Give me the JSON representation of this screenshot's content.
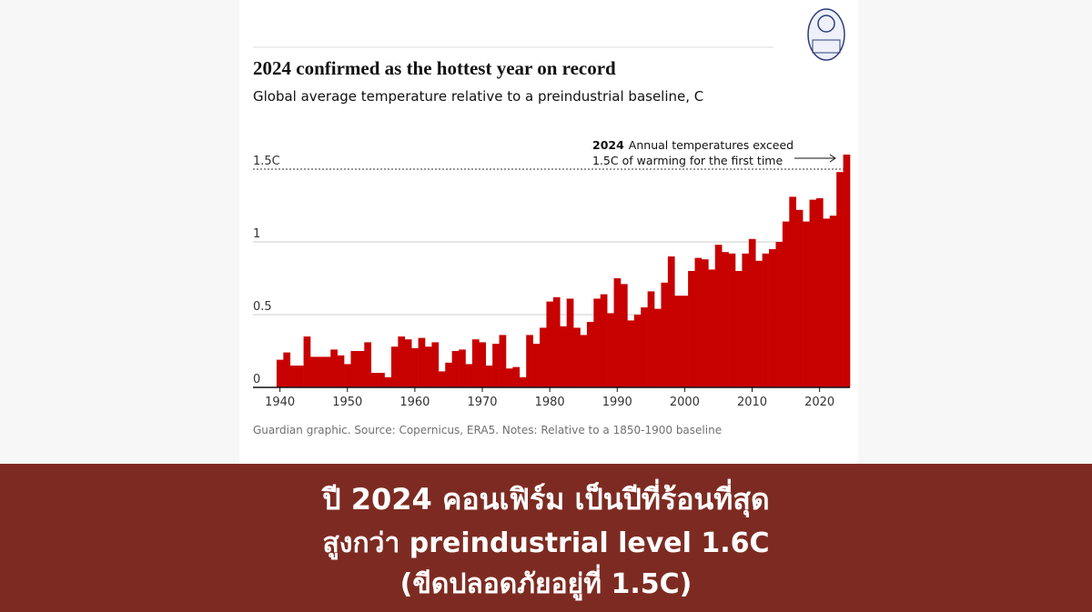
{
  "chart_data": {
    "type": "bar",
    "title": "2024 confirmed as the hottest year on record",
    "subtitle": "Global average temperature relative to a preindustrial baseline, C",
    "source": "Guardian graphic. Source: Copernicus, ERA5. Notes: Relative to a 1850-1900 baseline",
    "annotation": {
      "year": "2024",
      "lines": [
        "Annual temperatures exceed",
        "1.5C of warming for the first time"
      ]
    },
    "color": "#c70000",
    "x": [
      1940,
      1941,
      1942,
      1943,
      1944,
      1945,
      1946,
      1947,
      1948,
      1949,
      1950,
      1951,
      1952,
      1953,
      1954,
      1955,
      1956,
      1957,
      1958,
      1959,
      1960,
      1961,
      1962,
      1963,
      1964,
      1965,
      1966,
      1967,
      1968,
      1969,
      1970,
      1971,
      1972,
      1973,
      1974,
      1975,
      1976,
      1977,
      1978,
      1979,
      1980,
      1981,
      1982,
      1983,
      1984,
      1985,
      1986,
      1987,
      1988,
      1989,
      1990,
      1991,
      1992,
      1993,
      1994,
      1995,
      1996,
      1997,
      1998,
      1999,
      2000,
      2001,
      2002,
      2003,
      2004,
      2005,
      2006,
      2007,
      2008,
      2009,
      2010,
      2011,
      2012,
      2013,
      2014,
      2015,
      2016,
      2017,
      2018,
      2019,
      2020,
      2021,
      2022,
      2023,
      2024
    ],
    "values": [
      0.19,
      0.24,
      0.15,
      0.15,
      0.35,
      0.21,
      0.21,
      0.21,
      0.26,
      0.22,
      0.16,
      0.25,
      0.25,
      0.31,
      0.1,
      0.1,
      0.07,
      0.28,
      0.35,
      0.33,
      0.27,
      0.34,
      0.28,
      0.31,
      0.11,
      0.17,
      0.25,
      0.26,
      0.16,
      0.33,
      0.31,
      0.15,
      0.3,
      0.36,
      0.13,
      0.14,
      0.07,
      0.36,
      0.3,
      0.41,
      0.59,
      0.62,
      0.42,
      0.61,
      0.41,
      0.36,
      0.45,
      0.61,
      0.64,
      0.51,
      0.75,
      0.71,
      0.46,
      0.5,
      0.55,
      0.66,
      0.54,
      0.72,
      0.9,
      0.63,
      0.63,
      0.8,
      0.89,
      0.88,
      0.81,
      0.98,
      0.93,
      0.92,
      0.8,
      0.92,
      1.02,
      0.87,
      0.92,
      0.95,
      1.0,
      1.14,
      1.31,
      1.22,
      1.14,
      1.29,
      1.3,
      1.16,
      1.18,
      1.48,
      1.6
    ],
    "xlim": [
      1936,
      2024.5
    ],
    "xticks": [
      1940,
      1950,
      1960,
      1970,
      1980,
      1990,
      2000,
      2010,
      2020
    ],
    "ylim": [
      0,
      1.6
    ],
    "yticks": [
      0,
      0.5,
      1,
      {
        "value": 1.5,
        "label": "1.5C"
      }
    ],
    "grid": true
  },
  "caption": {
    "lines": [
      "ปี 2024 คอนเฟิร์ม เป็นปีที่ร้อนที่สุด",
      "สูงกว่า preindustrial level 1.6C",
      "(ขีดปลอดภัยอยู่ที่ 1.5C)"
    ]
  }
}
